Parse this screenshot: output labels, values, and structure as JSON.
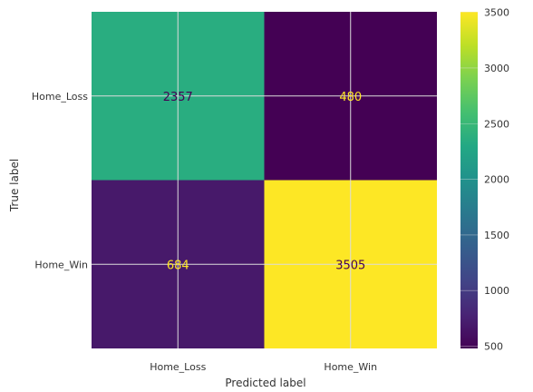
{
  "chart_data": {
    "type": "heatmap",
    "xlabel": "Predicted label",
    "ylabel": "True label",
    "x_categories": [
      "Home_Loss",
      "Home_Win"
    ],
    "y_categories": [
      "Home_Loss",
      "Home_Win"
    ],
    "values": [
      [
        2357,
        480
      ],
      [
        684,
        3505
      ]
    ],
    "value_labels": [
      [
        "2357",
        "480"
      ],
      [
        "684",
        "3505"
      ]
    ],
    "colormap": "viridis",
    "colorbar": {
      "range": [
        480,
        3505
      ],
      "ticks": [
        500,
        1000,
        1500,
        2000,
        2500,
        3000,
        3500
      ],
      "tick_labels": [
        "500",
        "1000",
        "1500",
        "2000",
        "2500",
        "3000",
        "3500"
      ]
    },
    "grid": true,
    "colors": {
      "viridis_low": "#440154",
      "viridis_mid": "#21918c",
      "viridis_high": "#fde725",
      "text_on_dark": "#fde725",
      "text_on_light": "#440154"
    }
  }
}
